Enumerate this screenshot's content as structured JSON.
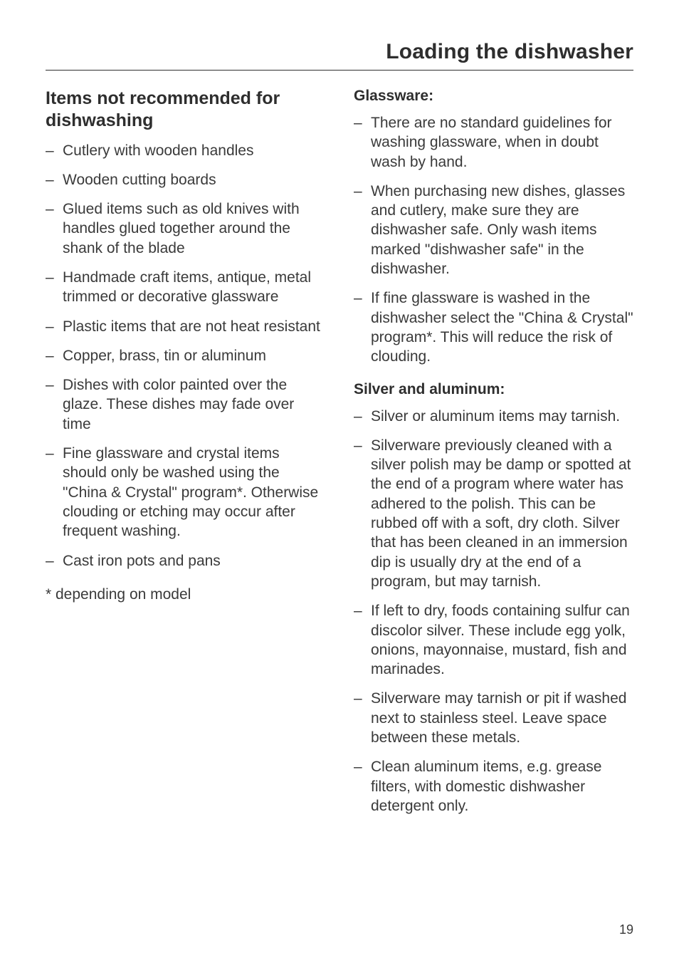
{
  "page": {
    "title": "Loading the dishwasher",
    "number": "19"
  },
  "left": {
    "heading": "Items not recommended for dishwashing",
    "items": [
      "Cutlery with wooden handles",
      "Wooden cutting boards",
      "Glued items such as old knives with handles glued together around the shank of the blade",
      "Handmade craft items, antique, metal trimmed or decorative glassware",
      "Plastic items that are not heat resistant",
      "Copper, brass, tin or aluminum",
      "Dishes with color painted over the glaze. These dishes may fade over time",
      "Fine glassware and crystal items should only be washed using the \"China & Crystal\" program*. Otherwise clouding or etching may occur after frequent washing.",
      "Cast iron pots and pans"
    ],
    "footnote": "* depending on model"
  },
  "right": {
    "glassware": {
      "heading": "Glassware:",
      "items": [
        "There are no standard guidelines for washing glassware, when in doubt wash by hand.",
        "When purchasing new dishes, glasses and cutlery, make sure they are dishwasher safe. Only wash items marked \"dishwasher safe\" in the dishwasher.",
        "If fine glassware is washed in the dishwasher select the \"China & Crystal\" program*. This will reduce the risk of clouding."
      ]
    },
    "silver": {
      "heading": "Silver and aluminum:",
      "items": [
        "Silver or aluminum items may tarnish.",
        "Silverware previously cleaned with a silver polish may be damp or spotted at the end of a program where water has adhered to the polish. This can be rubbed off with a soft, dry cloth. Silver that has been cleaned in an immersion dip is usually dry at the end of a program, but may tarnish.",
        "If left to dry, foods containing sulfur can discolor silver. These include egg yolk, onions, mayonnaise, mustard, fish and marinades.",
        "Silverware may tarnish or pit if washed next to stainless steel. Leave space between these metals.",
        "Clean aluminum items, e.g. grease filters, with domestic dishwasher detergent only."
      ]
    }
  }
}
